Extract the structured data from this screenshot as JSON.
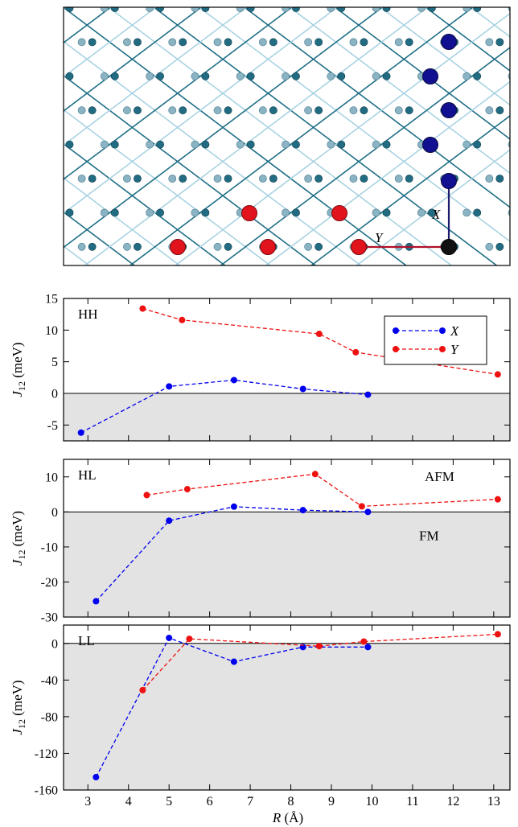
{
  "lattice": {
    "label_x": "X",
    "label_y": "Y",
    "colors": {
      "bond_dark": "#1f6f86",
      "bond_light": "#a9d3e2",
      "atom_dark": "#226c83",
      "atom_light": "#8ab3c3",
      "red": "#e1131c",
      "blue": "#1a1a8c",
      "black": "#111111"
    }
  },
  "y_axis_label": {
    "main": "J",
    "sub": "12",
    "unit": "(meV)"
  },
  "x_axis_label": {
    "main": "R",
    "unit": "(Å)"
  },
  "legend": {
    "series_x": "X",
    "series_y": "Y"
  },
  "chart_data": [
    {
      "type": "line",
      "panel_label": "HH",
      "xlim": [
        2.4,
        13.4
      ],
      "ylim": [
        -7.5,
        15
      ],
      "yticks": [
        -5,
        0,
        5,
        10,
        15
      ],
      "ytick_labels": [
        "-5",
        "0",
        "5",
        "10",
        "15"
      ],
      "series": [
        {
          "name": "X",
          "color": "#0000ee",
          "x": [
            2.83,
            5.0,
            6.6,
            8.3,
            9.9
          ],
          "y": [
            -6.2,
            1.1,
            2.1,
            0.7,
            -0.2
          ]
        },
        {
          "name": "Y",
          "color": "#ee1111",
          "x": [
            4.35,
            5.32,
            8.7,
            9.6,
            13.1
          ],
          "y": [
            13.4,
            11.6,
            9.4,
            6.5,
            3.0
          ]
        }
      ]
    },
    {
      "type": "line",
      "panel_label": "HL",
      "annotations": [
        "AFM",
        "FM"
      ],
      "xlim": [
        2.4,
        13.4
      ],
      "ylim": [
        -30,
        15
      ],
      "yticks": [
        -30,
        -20,
        -10,
        0,
        10
      ],
      "ytick_labels": [
        "-30",
        "-20",
        "-10",
        "0",
        "10"
      ],
      "series": [
        {
          "name": "X",
          "color": "#0000ee",
          "x": [
            3.2,
            5.0,
            6.6,
            8.3,
            9.9
          ],
          "y": [
            -25.5,
            -2.5,
            1.5,
            0.5,
            0.0
          ]
        },
        {
          "name": "Y",
          "color": "#ee1111",
          "x": [
            4.45,
            5.45,
            8.6,
            9.75,
            13.1
          ],
          "y": [
            4.8,
            6.5,
            10.8,
            1.6,
            3.6
          ]
        }
      ]
    },
    {
      "type": "line",
      "panel_label": "LL",
      "xlim": [
        2.4,
        13.4
      ],
      "ylim": [
        -160,
        20
      ],
      "yticks": [
        -160,
        -120,
        -80,
        -40,
        0
      ],
      "ytick_labels": [
        "-160",
        "-120",
        "-80",
        "-40",
        "0"
      ],
      "xticks": [
        3,
        4,
        5,
        6,
        7,
        8,
        9,
        10,
        11,
        12,
        13
      ],
      "xtick_labels": [
        "3",
        "4",
        "5",
        "6",
        "7",
        "8",
        "9",
        "10",
        "11",
        "12",
        "13"
      ],
      "series": [
        {
          "name": "X",
          "color": "#0000ee",
          "x": [
            3.2,
            5.0,
            6.6,
            8.3,
            9.9
          ],
          "y": [
            -146,
            6,
            -20,
            -4,
            -4
          ]
        },
        {
          "name": "Y",
          "color": "#ee1111",
          "x": [
            4.35,
            5.5,
            8.7,
            9.8,
            13.1
          ],
          "y": [
            -51,
            5,
            -3,
            2,
            10
          ]
        }
      ]
    }
  ]
}
